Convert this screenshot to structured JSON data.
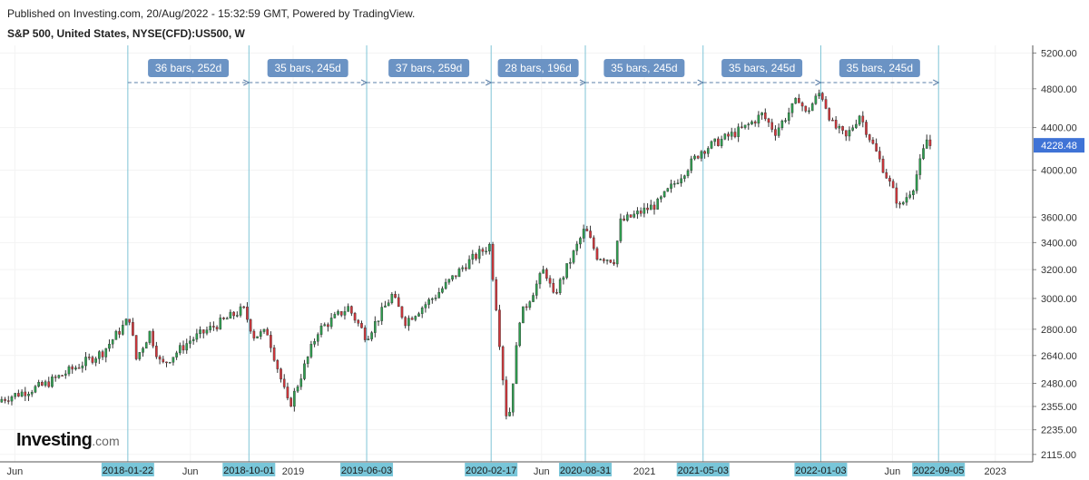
{
  "header": {
    "published": "Published on Investing.com, 20/Aug/2022 - 15:32:59 GMT, Powered by TradingView.",
    "title": "S&P 500, United States, NYSE(CFD):US500, W"
  },
  "logo": {
    "brand": "Investing",
    "domain": ".com"
  },
  "colors": {
    "up": "#2e9e4f",
    "down": "#d0353a",
    "wick": "#333333",
    "vline": "#7fc4d6",
    "date_tag_bg": "#79c6d9",
    "range_tag_bg": "#6b93c4",
    "price_tag_bg": "#3f73d6",
    "grid": "#f3f3f3"
  },
  "chart_data": {
    "type": "candlestick",
    "title": "S&P 500, United States, NYSE(CFD):US500, W",
    "interval": "weekly",
    "y_scale": "log",
    "ylim": [
      2080,
      5290
    ],
    "xlim": [
      "2017-05-01",
      "2023-03-20"
    ],
    "y_ticks": [
      2115,
      2235,
      2355,
      2480,
      2640,
      2800,
      3000,
      3200,
      3400,
      3600,
      4000,
      4400,
      4800,
      5200
    ],
    "y_tick_labels": [
      "2115.00",
      "2235.00",
      "2355.00",
      "2480.00",
      "2640.00",
      "2800.00",
      "3000.00",
      "3200.00",
      "3400.00",
      "3600.00",
      "4000.00",
      "4400.00",
      "4800.00",
      "5200.00"
    ],
    "x_axis_labels": [
      {
        "date": "2017-06-01",
        "label": "Jun"
      },
      {
        "date": "2018-06-01",
        "label": "Jun"
      },
      {
        "date": "2019-01-01",
        "label": "2019"
      },
      {
        "date": "2020-06-01",
        "label": "Jun"
      },
      {
        "date": "2021-01-01",
        "label": "2021"
      },
      {
        "date": "2022-06-01",
        "label": "Jun"
      },
      {
        "date": "2023-01-01",
        "label": "2023"
      }
    ],
    "marker_dates": [
      "2018-01-22",
      "2018-10-01",
      "2019-06-03",
      "2020-02-17",
      "2020-08-31",
      "2021-05-03",
      "2022-01-03",
      "2022-09-05"
    ],
    "intervals": [
      {
        "start": "2018-01-22",
        "end": "2018-10-01",
        "label": "36 bars, 252d"
      },
      {
        "start": "2018-10-01",
        "end": "2019-06-03",
        "label": "35 bars, 245d"
      },
      {
        "start": "2019-06-03",
        "end": "2020-02-17",
        "label": "37 bars, 259d"
      },
      {
        "start": "2020-02-17",
        "end": "2020-08-31",
        "label": "28 bars, 196d"
      },
      {
        "start": "2020-08-31",
        "end": "2021-05-03",
        "label": "35 bars, 245d"
      },
      {
        "start": "2021-05-03",
        "end": "2022-01-03",
        "label": "35 bars, 245d"
      },
      {
        "start": "2022-01-03",
        "end": "2022-09-05",
        "label": "35 bars, 245d"
      }
    ],
    "last_price": 4228.48,
    "last_price_label": "4228.48",
    "close_anchors": [
      [
        "2017-05-01",
        2390
      ],
      [
        "2017-08-01",
        2470
      ],
      [
        "2017-12-01",
        2660
      ],
      [
        "2018-01-26",
        2870
      ],
      [
        "2018-02-09",
        2620
      ],
      [
        "2018-03-09",
        2780
      ],
      [
        "2018-04-02",
        2580
      ],
      [
        "2018-06-01",
        2730
      ],
      [
        "2018-09-20",
        2930
      ],
      [
        "2018-10-12",
        2760
      ],
      [
        "2018-11-09",
        2780
      ],
      [
        "2018-12-24",
        2350
      ],
      [
        "2019-02-22",
        2790
      ],
      [
        "2019-04-26",
        2940
      ],
      [
        "2019-06-03",
        2750
      ],
      [
        "2019-07-26",
        3020
      ],
      [
        "2019-08-23",
        2850
      ],
      [
        "2019-10-25",
        3020
      ],
      [
        "2019-12-27",
        3240
      ],
      [
        "2020-02-14",
        3380
      ],
      [
        "2020-02-28",
        2950
      ],
      [
        "2020-03-23",
        2240
      ],
      [
        "2020-04-17",
        2870
      ],
      [
        "2020-06-08",
        3210
      ],
      [
        "2020-06-26",
        3010
      ],
      [
        "2020-08-31",
        3510
      ],
      [
        "2020-09-25",
        3300
      ],
      [
        "2020-10-30",
        3270
      ],
      [
        "2020-11-13",
        3560
      ],
      [
        "2021-01-29",
        3710
      ],
      [
        "2021-04-30",
        4180
      ],
      [
        "2021-07-30",
        4400
      ],
      [
        "2021-09-03",
        4530
      ],
      [
        "2021-10-01",
        4360
      ],
      [
        "2021-11-19",
        4700
      ],
      [
        "2021-12-03",
        4540
      ],
      [
        "2022-01-03",
        4770
      ],
      [
        "2022-01-28",
        4430
      ],
      [
        "2022-02-25",
        4300
      ],
      [
        "2022-03-25",
        4530
      ],
      [
        "2022-05-13",
        4020
      ],
      [
        "2022-06-17",
        3680
      ],
      [
        "2022-07-15",
        3860
      ],
      [
        "2022-08-12",
        4280
      ],
      [
        "2022-08-19",
        4228
      ]
    ]
  }
}
